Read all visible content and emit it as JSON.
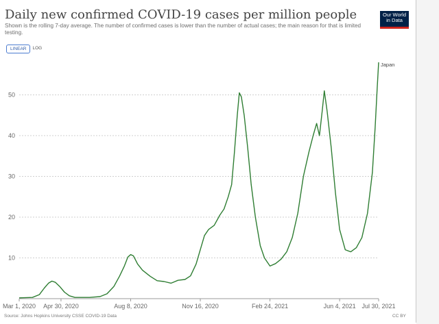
{
  "header": {
    "title": "Daily new confirmed COVID-19 cases per million people",
    "subtitle": "Shown is the rolling 7-day average. The number of confirmed cases is lower than the number of actual cases; the main reason for that is limited testing.",
    "logo_line1": "Our World",
    "logo_line2": "in Data",
    "logo_color": "#002147",
    "logo_accent": "#ce261e"
  },
  "controls": {
    "linear_label": "LINEAR",
    "log_label": "LOG",
    "selected": "LINEAR"
  },
  "footer": {
    "source": "Source: Johns Hopkins University CSSE COVID-19 Data",
    "license": "CC BY"
  },
  "chart_data": {
    "type": "line",
    "title": "Daily new confirmed COVID-19 cases per million people",
    "xlabel": "",
    "ylabel": "",
    "ylim": [
      0,
      60
    ],
    "yticks": [
      10,
      20,
      30,
      40,
      50
    ],
    "xlim": [
      "2020-03-01",
      "2021-07-30"
    ],
    "xticks": [
      "Mar 1, 2020",
      "Apr 30, 2020",
      "Aug 8, 2020",
      "Nov 16, 2020",
      "Feb 24, 2021",
      "Jun 4, 2021",
      "Jul 30, 2021"
    ],
    "xtick_dates": [
      "2020-03-01",
      "2020-04-30",
      "2020-08-08",
      "2020-11-16",
      "2021-02-24",
      "2021-06-04",
      "2021-07-30"
    ],
    "grid": "horizontal dotted",
    "series": [
      {
        "name": "Japan",
        "color": "#2e7d32",
        "points": [
          [
            "2020-03-01",
            0.2
          ],
          [
            "2020-03-20",
            0.3
          ],
          [
            "2020-03-30",
            1.0
          ],
          [
            "2020-04-06",
            2.6
          ],
          [
            "2020-04-12",
            3.8
          ],
          [
            "2020-04-17",
            4.3
          ],
          [
            "2020-04-22",
            4.0
          ],
          [
            "2020-04-28",
            3.0
          ],
          [
            "2020-05-05",
            1.6
          ],
          [
            "2020-05-12",
            0.7
          ],
          [
            "2020-05-20",
            0.3
          ],
          [
            "2020-06-10",
            0.3
          ],
          [
            "2020-06-25",
            0.5
          ],
          [
            "2020-07-05",
            1.2
          ],
          [
            "2020-07-15",
            3.0
          ],
          [
            "2020-07-23",
            5.5
          ],
          [
            "2020-07-30",
            8.0
          ],
          [
            "2020-08-04",
            10.2
          ],
          [
            "2020-08-08",
            10.8
          ],
          [
            "2020-08-12",
            10.5
          ],
          [
            "2020-08-18",
            8.5
          ],
          [
            "2020-08-25",
            7.0
          ],
          [
            "2020-09-05",
            5.5
          ],
          [
            "2020-09-15",
            4.4
          ],
          [
            "2020-09-25",
            4.2
          ],
          [
            "2020-10-05",
            3.8
          ],
          [
            "2020-10-15",
            4.5
          ],
          [
            "2020-10-25",
            4.7
          ],
          [
            "2020-11-02",
            5.6
          ],
          [
            "2020-11-10",
            8.5
          ],
          [
            "2020-11-16",
            12.0
          ],
          [
            "2020-11-22",
            15.5
          ],
          [
            "2020-11-28",
            17.0
          ],
          [
            "2020-12-06",
            18.0
          ],
          [
            "2020-12-14",
            20.5
          ],
          [
            "2020-12-20",
            22.0
          ],
          [
            "2020-12-26",
            25.0
          ],
          [
            "2020-12-31",
            28.0
          ],
          [
            "2021-01-04",
            36.0
          ],
          [
            "2021-01-08",
            45.0
          ],
          [
            "2021-01-11",
            50.5
          ],
          [
            "2021-01-14",
            49.5
          ],
          [
            "2021-01-18",
            45.0
          ],
          [
            "2021-01-23",
            37.0
          ],
          [
            "2021-01-28",
            28.0
          ],
          [
            "2021-02-03",
            20.0
          ],
          [
            "2021-02-10",
            13.0
          ],
          [
            "2021-02-16",
            10.0
          ],
          [
            "2021-02-24",
            8.0
          ],
          [
            "2021-03-04",
            8.6
          ],
          [
            "2021-03-12",
            9.7
          ],
          [
            "2021-03-20",
            11.5
          ],
          [
            "2021-03-28",
            15.0
          ],
          [
            "2021-04-05",
            21.0
          ],
          [
            "2021-04-13",
            30.0
          ],
          [
            "2021-04-21",
            36.0
          ],
          [
            "2021-04-27",
            40.0
          ],
          [
            "2021-05-02",
            43.0
          ],
          [
            "2021-05-06",
            40.0
          ],
          [
            "2021-05-10",
            46.0
          ],
          [
            "2021-05-13",
            51.0
          ],
          [
            "2021-05-17",
            46.0
          ],
          [
            "2021-05-23",
            37.0
          ],
          [
            "2021-05-29",
            26.0
          ],
          [
            "2021-06-04",
            17.0
          ],
          [
            "2021-06-12",
            12.0
          ],
          [
            "2021-06-20",
            11.5
          ],
          [
            "2021-06-28",
            12.5
          ],
          [
            "2021-07-06",
            15.0
          ],
          [
            "2021-07-14",
            21.0
          ],
          [
            "2021-07-21",
            31.0
          ],
          [
            "2021-07-25",
            42.0
          ],
          [
            "2021-07-28",
            52.0
          ],
          [
            "2021-07-30",
            58.0
          ]
        ]
      }
    ]
  }
}
